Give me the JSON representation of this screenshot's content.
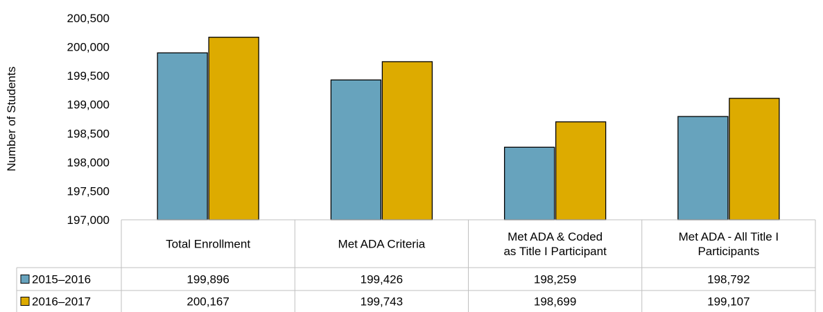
{
  "chart_data": {
    "type": "bar",
    "ylabel": "Number of Students",
    "ylim": [
      197000,
      200500
    ],
    "ytick_step": 500,
    "categories": [
      [
        "Total Enrollment"
      ],
      [
        "Met ADA Criteria"
      ],
      [
        "Met ADA & Coded",
        "as Title I Participant"
      ],
      [
        "Met ADA - All Title I",
        "Participants"
      ]
    ],
    "series": [
      {
        "name": "2015–2016",
        "color": "#67a3bd",
        "values": [
          199896,
          199426,
          198259,
          198792
        ],
        "labels": [
          "199,896",
          "199,426",
          "198,259",
          "198,792"
        ]
      },
      {
        "name": "2016–2017",
        "color": "#ddab00",
        "values": [
          200167,
          199743,
          198699,
          199107
        ],
        "labels": [
          "200,167",
          "199,743",
          "198,699",
          "199,107"
        ]
      }
    ],
    "legend": "data-table",
    "grid": false
  }
}
